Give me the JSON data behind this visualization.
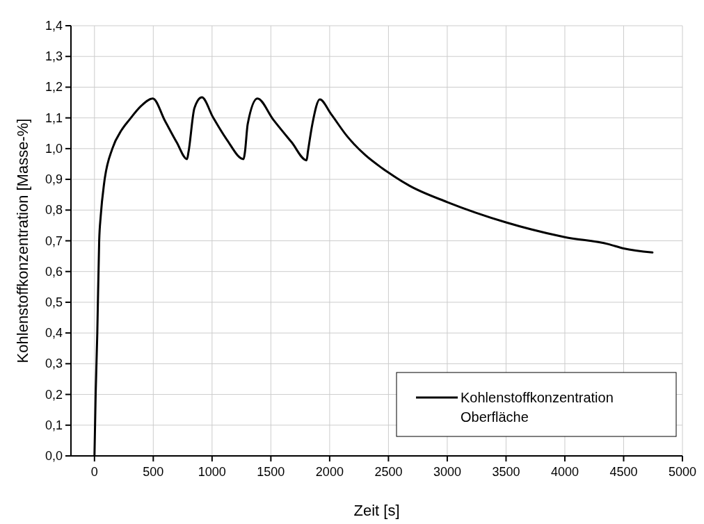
{
  "chart_data": {
    "type": "line",
    "xlabel": "Zeit [s]",
    "ylabel": "Kohlenstoffkonzentration [Masse-%]",
    "xlim": [
      -200,
      5000
    ],
    "xticks": [
      0,
      500,
      1000,
      1500,
      2000,
      2500,
      3000,
      3500,
      4000,
      4500,
      5000
    ],
    "ylim": [
      0,
      1.4
    ],
    "yticks": [
      {
        "value": 0,
        "label": "0,0"
      },
      {
        "value": 0.1,
        "label": "0,1"
      },
      {
        "value": 0.2,
        "label": "0,2"
      },
      {
        "value": 0.3,
        "label": "0,3"
      },
      {
        "value": 0.4,
        "label": "0,4"
      },
      {
        "value": 0.5,
        "label": "0,5"
      },
      {
        "value": 0.6,
        "label": "0,6"
      },
      {
        "value": 0.7,
        "label": "0,7"
      },
      {
        "value": 0.8,
        "label": "0,8"
      },
      {
        "value": 0.9,
        "label": "0,9"
      },
      {
        "value": 1.0,
        "label": "1,0"
      },
      {
        "value": 1.1,
        "label": "1,1"
      },
      {
        "value": 1.2,
        "label": "1,2"
      },
      {
        "value": 1.3,
        "label": "1,3"
      },
      {
        "value": 1.4,
        "label": "1,4"
      }
    ],
    "grid": true,
    "legend": "bottom right",
    "line_style": "solid",
    "series": [
      {
        "name": "Kohlenstoffkonzentration Oberfläche",
        "color": "#000000",
        "x": [
          0,
          10,
          24,
          40,
          53,
          83,
          152,
          230,
          299,
          397,
          496,
          600,
          700,
          787,
          800,
          850,
          913,
          1008,
          1126,
          1268,
          1280,
          1303,
          1386,
          1519,
          1676,
          1804,
          1815,
          1853,
          1916,
          2011,
          2149,
          2300,
          2444,
          2500,
          2680,
          3000,
          3500,
          4000,
          4372,
          4500,
          4745
        ],
        "values": [
          0,
          0.2,
          0.4,
          0.7,
          0.78,
          0.89,
          1.0,
          1.06,
          1.095,
          1.139,
          1.163,
          1.09,
          1.02,
          0.966,
          0.99,
          1.132,
          1.167,
          1.102,
          1.029,
          0.966,
          0.99,
          1.08,
          1.163,
          1.095,
          1.021,
          0.962,
          0.99,
          1.08,
          1.16,
          1.113,
          1.04,
          0.98,
          0.937,
          0.922,
          0.879,
          0.826,
          0.76,
          0.712,
          0.689,
          0.675,
          0.662
        ]
      }
    ]
  }
}
